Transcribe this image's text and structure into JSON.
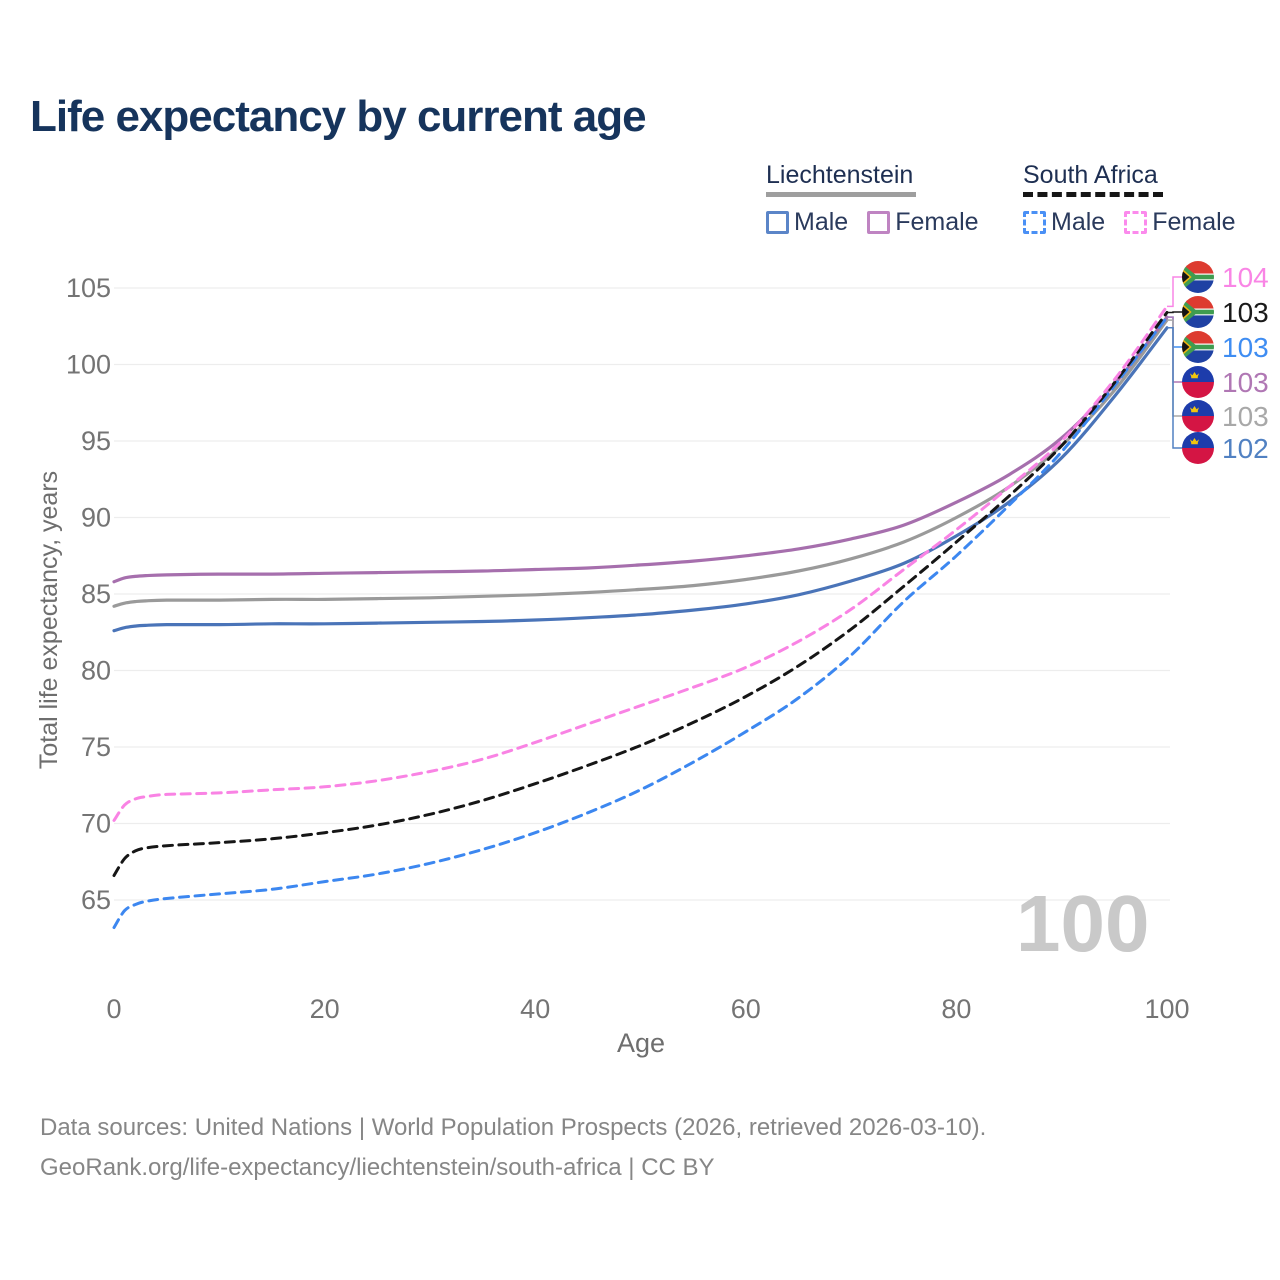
{
  "title": "Life expectancy by current age",
  "watermark": "100",
  "footer": {
    "line1": "Data sources: United Nations | World Population Prospects (2026, retrieved 2026-03-10).",
    "line2": "GeoRank.org/life-expectancy/liechtenstein/south-africa | CC BY"
  },
  "legend": {
    "position": "top-right",
    "groups": [
      {
        "country": "Liechtenstein",
        "line_style": "solid",
        "underline_color": "#9e9e9e",
        "items": [
          {
            "label": "Male",
            "color": "#5b85c8",
            "style": "solid"
          },
          {
            "label": "Female",
            "color": "#bf84c2",
            "style": "solid"
          }
        ]
      },
      {
        "country": "South Africa",
        "line_style": "dashed",
        "underline_color": "#161616",
        "items": [
          {
            "label": "Male",
            "color": "#4a90f5",
            "style": "dashed"
          },
          {
            "label": "Female",
            "color": "#fb8aec",
            "style": "dashed"
          }
        ]
      }
    ]
  },
  "chart_data": {
    "type": "line",
    "title": "Life expectancy by current age",
    "xlabel": "Age",
    "ylabel": "Total life expectancy, years",
    "x_ticks": [
      0,
      20,
      40,
      60,
      80,
      100
    ],
    "y_ticks": [
      65,
      70,
      75,
      80,
      85,
      90,
      95,
      100,
      105
    ],
    "xlim": [
      0,
      100
    ],
    "ylim": [
      63,
      106
    ],
    "grid": "horizontal",
    "axis_color": "#747474",
    "grid_color": "#ededed",
    "ages": [
      0,
      1,
      2,
      3,
      5,
      10,
      15,
      20,
      25,
      30,
      35,
      40,
      45,
      50,
      55,
      60,
      65,
      70,
      75,
      80,
      85,
      90,
      95,
      100
    ],
    "series": [
      {
        "name": "Liechtenstein Male",
        "country": "Liechtenstein",
        "sex": "Male",
        "color": "#4a74b8",
        "dashed": false,
        "flag": "li",
        "values": [
          82.6,
          82.8,
          82.9,
          82.95,
          83.0,
          83.0,
          83.05,
          83.05,
          83.1,
          83.15,
          83.2,
          83.3,
          83.45,
          83.65,
          83.95,
          84.35,
          84.95,
          85.85,
          87.0,
          88.8,
          91.0,
          93.9,
          97.9,
          102.4
        ]
      },
      {
        "name": "Liechtenstein Total",
        "country": "Liechtenstein",
        "sex": "Both",
        "color": "#9a9a9a",
        "dashed": false,
        "flag": "li",
        "values": [
          84.2,
          84.4,
          84.5,
          84.55,
          84.6,
          84.6,
          84.65,
          84.65,
          84.7,
          84.75,
          84.85,
          84.95,
          85.1,
          85.3,
          85.55,
          85.95,
          86.5,
          87.3,
          88.4,
          90.0,
          92.0,
          94.7,
          98.3,
          102.9
        ]
      },
      {
        "name": "Liechtenstein Female",
        "country": "Liechtenstein",
        "sex": "Female",
        "color": "#a66fad",
        "dashed": false,
        "flag": "li",
        "values": [
          85.8,
          86.05,
          86.15,
          86.2,
          86.25,
          86.3,
          86.3,
          86.35,
          86.4,
          86.45,
          86.5,
          86.6,
          86.7,
          86.9,
          87.15,
          87.5,
          87.95,
          88.6,
          89.5,
          91.0,
          92.8,
          95.2,
          98.7,
          103.1
        ]
      },
      {
        "name": "South Africa Male",
        "country": "South Africa",
        "sex": "Male",
        "color": "#3c87f0",
        "dashed": true,
        "flag": "za",
        "values": [
          63.2,
          64.3,
          64.7,
          64.9,
          65.1,
          65.4,
          65.7,
          66.2,
          66.7,
          67.4,
          68.3,
          69.4,
          70.7,
          72.2,
          74.0,
          76.0,
          78.2,
          81.0,
          84.5,
          87.5,
          90.8,
          94.3,
          98.6,
          103.1
        ]
      },
      {
        "name": "South Africa Total",
        "country": "South Africa",
        "sex": "Both",
        "color": "#161616",
        "dashed": true,
        "flag": "za",
        "values": [
          66.6,
          67.7,
          68.2,
          68.4,
          68.55,
          68.75,
          69.0,
          69.4,
          69.9,
          70.6,
          71.5,
          72.6,
          73.8,
          75.1,
          76.6,
          78.3,
          80.3,
          82.7,
          85.5,
          88.4,
          91.4,
          94.7,
          98.8,
          103.4
        ]
      },
      {
        "name": "South Africa Female",
        "country": "South Africa",
        "sex": "Female",
        "color": "#f983e4",
        "dashed": true,
        "flag": "za",
        "values": [
          70.2,
          71.2,
          71.6,
          71.75,
          71.9,
          72.0,
          72.2,
          72.4,
          72.8,
          73.4,
          74.2,
          75.3,
          76.5,
          77.7,
          78.9,
          80.2,
          81.9,
          84.0,
          86.6,
          89.2,
          92.0,
          95.0,
          99.0,
          103.8
        ]
      }
    ],
    "end_labels": [
      {
        "value": "104",
        "flag": "za",
        "color": "#f985e5",
        "series": "South Africa Female"
      },
      {
        "value": "103",
        "flag": "za",
        "color": "#1a1a1a",
        "series": "South Africa Total"
      },
      {
        "value": "103",
        "flag": "za",
        "color": "#3f8df2",
        "series": "South Africa Male"
      },
      {
        "value": "103",
        "flag": "li",
        "color": "#b077b4",
        "series": "Liechtenstein Female"
      },
      {
        "value": "103",
        "flag": "li",
        "color": "#a8a8a8",
        "series": "Liechtenstein Total"
      },
      {
        "value": "102",
        "flag": "li",
        "color": "#5181c2",
        "series": "Liechtenstein Male"
      }
    ]
  }
}
